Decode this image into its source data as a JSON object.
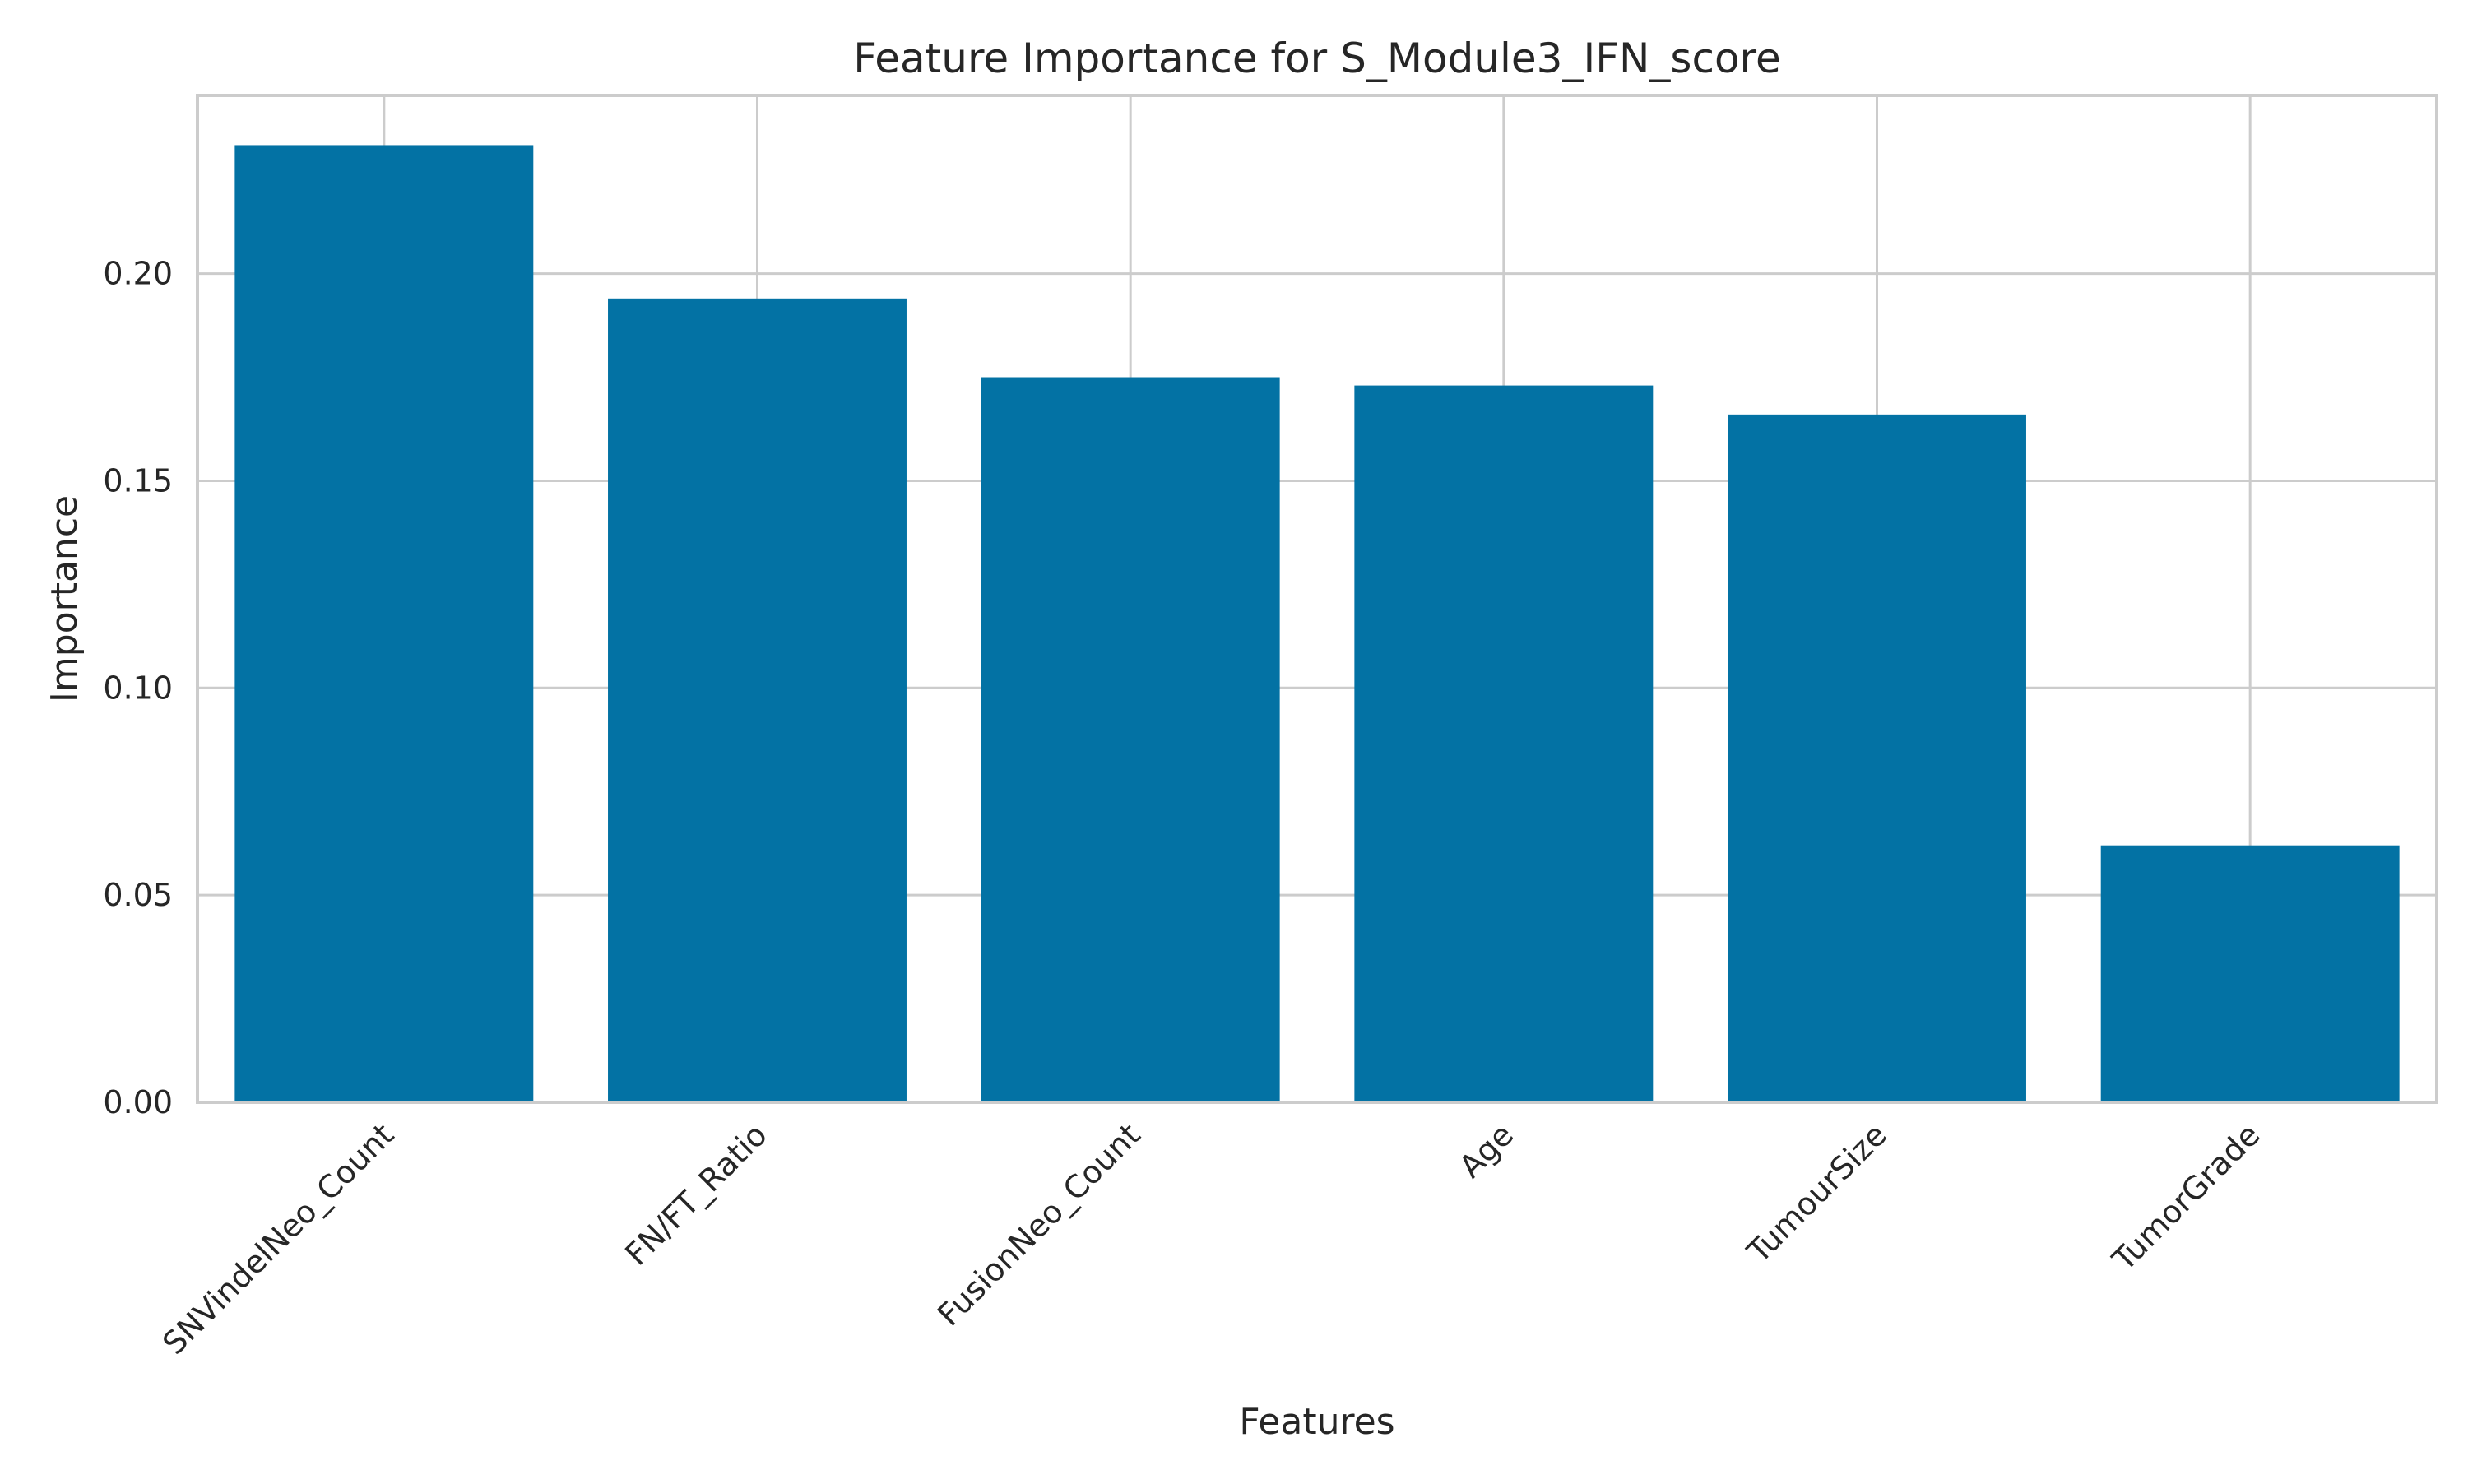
{
  "chart_data": {
    "type": "bar",
    "title": "Feature Importance for S_Module3_IFN_score",
    "xlabel": "Features",
    "ylabel": "Importance",
    "categories": [
      "SNVindelNeo_Count",
      "FN/FT_Ratio",
      "FusionNeo_Count",
      "Age",
      "TumourSize",
      "TumorGrade"
    ],
    "values": [
      0.231,
      0.194,
      0.175,
      0.173,
      0.166,
      0.062
    ],
    "ylim": [
      0,
      0.243
    ],
    "yticks": [
      0.0,
      0.05,
      0.1,
      0.15,
      0.2
    ],
    "ytick_labels": [
      "0.00",
      "0.05",
      "0.10",
      "0.15",
      "0.20"
    ],
    "grid": true,
    "bar_color": "#0372a4",
    "grid_color": "#cccccc",
    "spine_color": "#cccccc"
  }
}
